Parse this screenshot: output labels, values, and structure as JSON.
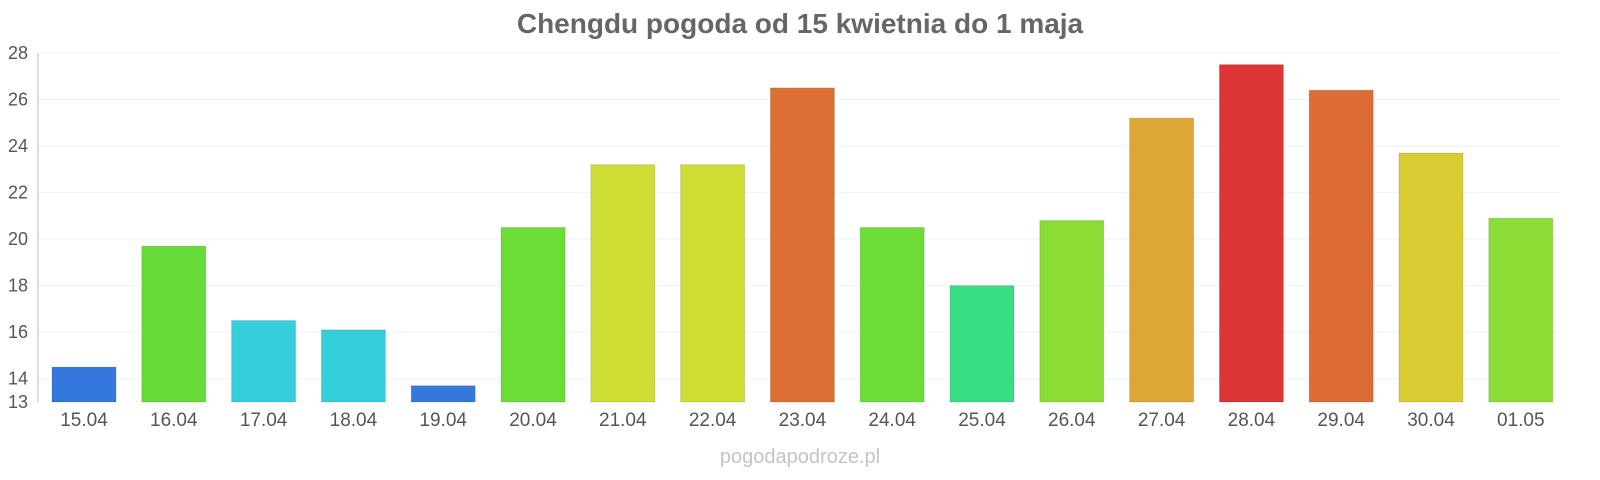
{
  "chart_data": {
    "type": "bar",
    "title": "Chengdu pogoda od 15 kwietnia do 1 maja",
    "categories": [
      "15.04",
      "16.04",
      "17.04",
      "18.04",
      "19.04",
      "20.04",
      "21.04",
      "22.04",
      "23.04",
      "24.04",
      "25.04",
      "26.04",
      "27.04",
      "28.04",
      "29.04",
      "30.04",
      "01.05"
    ],
    "values": [
      14.5,
      19.7,
      16.5,
      16.1,
      13.7,
      20.5,
      23.2,
      23.2,
      26.5,
      20.5,
      18.0,
      20.8,
      25.2,
      27.5,
      26.4,
      23.7,
      20.9
    ],
    "colors": [
      "#3478dd",
      "#67dc39",
      "#35cfdc",
      "#35cfdc",
      "#3478dd",
      "#6cdd37",
      "#cddd33",
      "#cddd33",
      "#dd6f34",
      "#6cdd37",
      "#38dd86",
      "#8bdd35",
      "#dda735",
      "#dd3535",
      "#dd6c34",
      "#dbcb33",
      "#8bdd35"
    ],
    "ylim": [
      13,
      28
    ],
    "yticks": [
      "13",
      "14",
      "16",
      "18",
      "20",
      "22",
      "24",
      "26",
      "28"
    ],
    "xlabel": "",
    "ylabel": "",
    "grid": true,
    "legend": "none"
  },
  "footer": {
    "source": "pogodapodroze.pl"
  }
}
